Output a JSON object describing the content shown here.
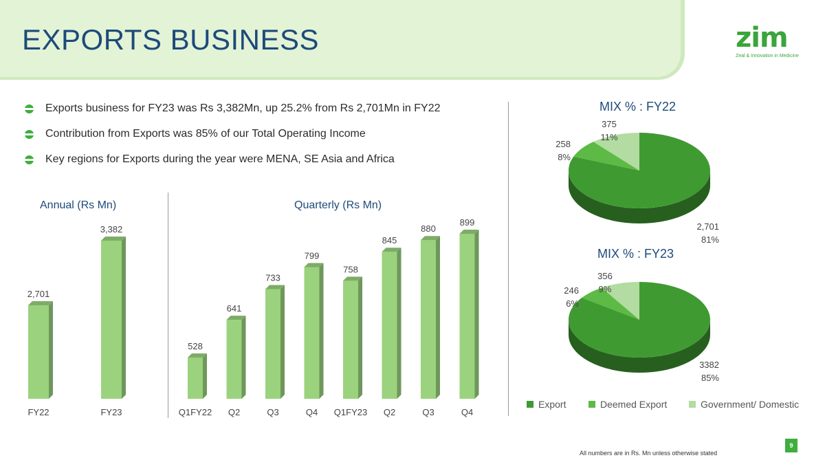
{
  "header": {
    "title": "EXPORTS BUSINESS"
  },
  "logo": {
    "word": "zim",
    "tagline": "Zeal & Innovation in Medicine"
  },
  "bullets": [
    "Exports business for FY23 was Rs 3,382Mn, up 25.2% from Rs 2,701Mn in FY22",
    "Contribution from Exports was 85% of our Total Operating Income",
    "Key regions for Exports during the year were MENA, SE Asia and Africa"
  ],
  "colors": {
    "bar": "#9ad27e",
    "export": "#3f9a32",
    "deemed": "#5cba45",
    "government": "#b2dca1",
    "accent": "#1d4a7a"
  },
  "chart_data": [
    {
      "type": "bar",
      "title": "Annual (Rs Mn)",
      "categories": [
        "FY22",
        "FY23"
      ],
      "values": [
        2701,
        3382
      ],
      "value_labels": [
        "2,701",
        "3,382"
      ]
    },
    {
      "type": "bar",
      "title": "Quarterly (Rs Mn)",
      "categories": [
        "Q1FY22",
        "Q2",
        "Q3",
        "Q4",
        "Q1FY23",
        "Q2",
        "Q3",
        "Q4"
      ],
      "values": [
        528,
        641,
        733,
        799,
        758,
        845,
        880,
        899
      ],
      "value_labels": [
        "528",
        "641",
        "733",
        "799",
        "758",
        "845",
        "880",
        "899"
      ]
    },
    {
      "type": "pie",
      "title": "MIX % : FY22",
      "labels": [
        "Export",
        "Deemed Export",
        "Government/ Domestic"
      ],
      "values": [
        2701,
        258,
        375
      ],
      "value_labels": [
        "2,701",
        "258",
        "375"
      ],
      "percent_labels": [
        "81%",
        "8%",
        "11%"
      ]
    },
    {
      "type": "pie",
      "title": "MIX % : FY23",
      "labels": [
        "Export",
        "Deemed Export",
        "Government/ Domestic"
      ],
      "values": [
        3382,
        246,
        356
      ],
      "value_labels": [
        "3382",
        "246",
        "356"
      ],
      "percent_labels": [
        "85%",
        "6%",
        "9%"
      ]
    }
  ],
  "legend": [
    "Export",
    "Deemed Export",
    "Government/ Domestic"
  ],
  "footer": {
    "page_number": "9",
    "note": "All numbers are in Rs. Mn unless otherwise stated"
  }
}
